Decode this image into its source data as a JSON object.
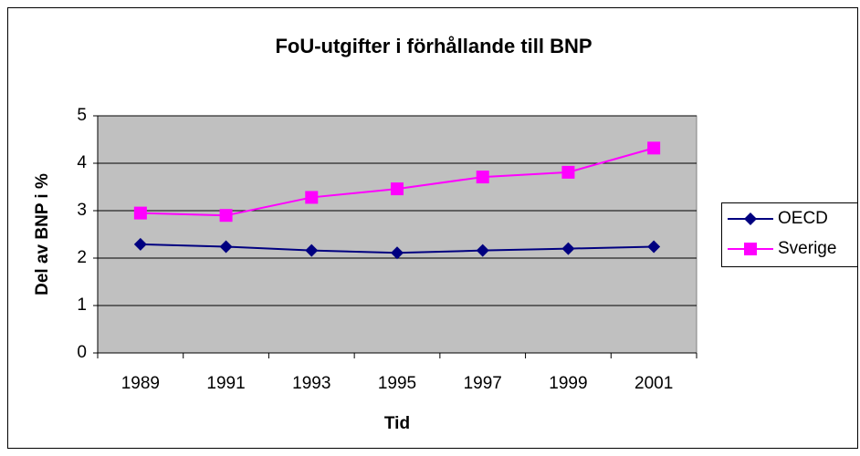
{
  "chart_data": {
    "type": "line",
    "title": "FoU-utgifter i förhållande till BNP",
    "x_label": "Tid",
    "y_label": "Del av BNP i %",
    "categories": [
      "1989",
      "1991",
      "1993",
      "1995",
      "1997",
      "1999",
      "2001"
    ],
    "series": [
      {
        "name": "OECD",
        "color": "#000080",
        "marker": "diamond",
        "values": [
          2.29,
          2.24,
          2.16,
          2.11,
          2.16,
          2.2,
          2.24
        ]
      },
      {
        "name": "Sverige",
        "color": "#ff00ff",
        "marker": "square",
        "values": [
          2.95,
          2.9,
          3.28,
          3.46,
          3.71,
          3.81,
          4.32
        ]
      }
    ],
    "ylim": [
      0,
      5
    ],
    "yticks": [
      0,
      1,
      2,
      3,
      4,
      5
    ],
    "grid": true,
    "legend": "right",
    "plot_background": "#c0c0c0"
  }
}
